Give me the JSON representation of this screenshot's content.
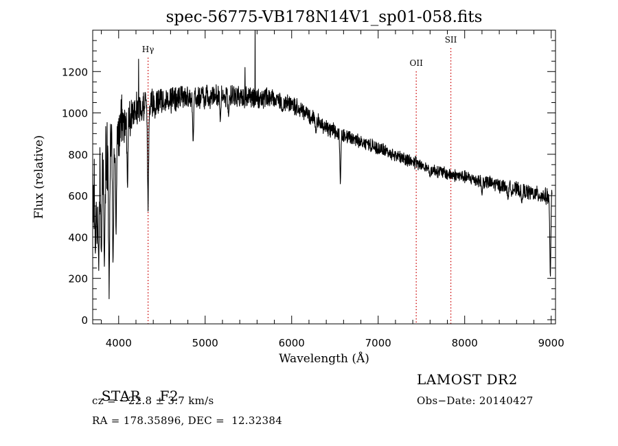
{
  "title": "spec-56775-VB178N14V1_sp01-058.fits",
  "info": {
    "class": "STAR",
    "subclass": "F2",
    "survey": "LAMOST DR2",
    "cz": "cz = −22.8 ± 3.7 km/s",
    "obs_date": "Obs−Date: 20140427",
    "radec": "RA = 178.35896, DEC =  12.32384"
  },
  "chart_data": {
    "type": "line",
    "title": "spec-56775-VB178N14V1_sp01-058.fits",
    "xlabel": "Wavelength (Å)",
    "ylabel": "Flux (relative)",
    "xlim": [
      3700,
      9050
    ],
    "ylim": [
      -20,
      1400
    ],
    "xticks": [
      4000,
      5000,
      6000,
      7000,
      8000,
      9000
    ],
    "yticks": [
      0,
      200,
      400,
      600,
      800,
      1000,
      1200
    ],
    "grid": false,
    "line_color": "#000000",
    "marker_color": "#cc0000",
    "lines": [
      {
        "label": "Hγ",
        "x": 4340
      },
      {
        "label": "OII",
        "x": 7440
      },
      {
        "label": "SII",
        "x": 7840
      }
    ],
    "continuum": [
      [
        3700,
        620
      ],
      [
        3800,
        700
      ],
      [
        3900,
        820
      ],
      [
        4000,
        920
      ],
      [
        4100,
        980
      ],
      [
        4200,
        1020
      ],
      [
        4400,
        1050
      ],
      [
        4600,
        1065
      ],
      [
        4800,
        1075
      ],
      [
        5000,
        1080
      ],
      [
        5200,
        1085
      ],
      [
        5400,
        1080
      ],
      [
        5600,
        1075
      ],
      [
        5800,
        1070
      ],
      [
        6000,
        1040
      ],
      [
        6200,
        990
      ],
      [
        6400,
        930
      ],
      [
        6600,
        890
      ],
      [
        6800,
        860
      ],
      [
        7000,
        830
      ],
      [
        7200,
        795
      ],
      [
        7400,
        765
      ],
      [
        7600,
        730
      ],
      [
        7800,
        705
      ],
      [
        8000,
        690
      ],
      [
        8200,
        670
      ],
      [
        8400,
        650
      ],
      [
        8600,
        630
      ],
      [
        8800,
        610
      ],
      [
        9000,
        590
      ]
    ],
    "absorption": [
      [
        3730,
        300
      ],
      [
        3750,
        350
      ],
      [
        3770,
        230
      ],
      [
        3800,
        300
      ],
      [
        3835,
        250
      ],
      [
        3890,
        90
      ],
      [
        3935,
        220
      ],
      [
        3970,
        400
      ],
      [
        4102,
        620
      ],
      [
        4340,
        510
      ],
      [
        4861,
        840
      ],
      [
        5175,
        950
      ],
      [
        5270,
        980
      ],
      [
        5893,
        1000
      ],
      [
        6280,
        900
      ],
      [
        6563,
        650
      ],
      [
        6870,
        860
      ],
      [
        7600,
        690
      ],
      [
        8200,
        600
      ],
      [
        8500,
        580
      ],
      [
        8660,
        560
      ],
      [
        8990,
        180
      ]
    ],
    "emission": [
      [
        4230,
        1260
      ],
      [
        5577,
        1400
      ],
      [
        5460,
        1220
      ]
    ],
    "noise_amplitude": [
      [
        3700,
        300
      ],
      [
        3950,
        180
      ],
      [
        4200,
        90
      ],
      [
        4600,
        70
      ],
      [
        5500,
        60
      ],
      [
        6200,
        45
      ],
      [
        7000,
        35
      ],
      [
        8000,
        35
      ],
      [
        9000,
        45
      ]
    ]
  }
}
